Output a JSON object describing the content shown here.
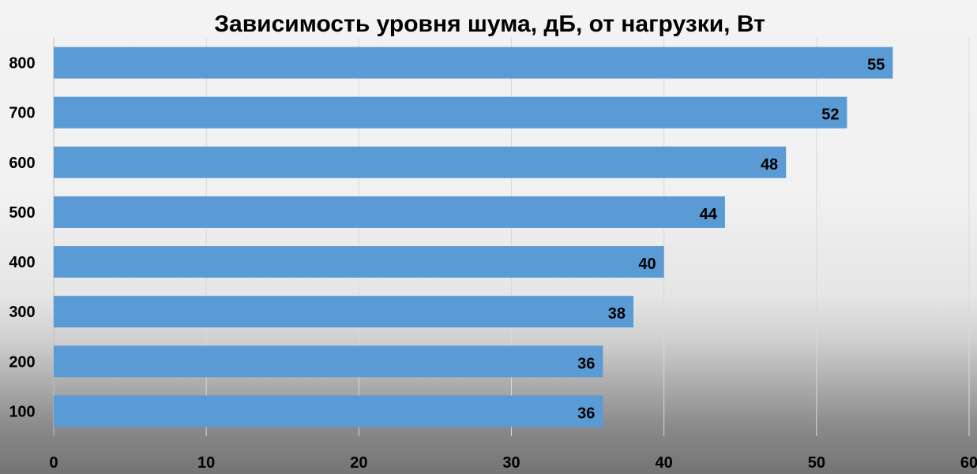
{
  "chart_data": {
    "type": "bar",
    "orientation": "horizontal",
    "title": "Зависимость уровня шума, дБ, от нагрузки, Вт",
    "categories": [
      "800",
      "700",
      "600",
      "500",
      "400",
      "300",
      "200",
      "100"
    ],
    "values": [
      55,
      52,
      48,
      44,
      40,
      38,
      36,
      36
    ],
    "xlim": [
      0,
      60
    ],
    "xticks": [
      0,
      10,
      20,
      30,
      40,
      50,
      60
    ],
    "grid": true,
    "legend": "none",
    "bar_color": "#5b9bd5",
    "data_labels": true
  }
}
